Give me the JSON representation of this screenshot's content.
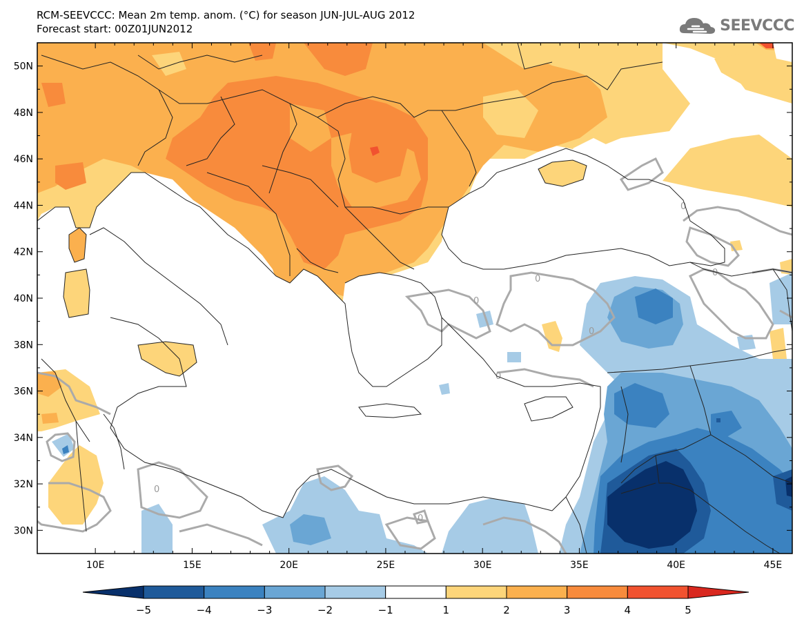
{
  "title_line1": "RCM-SEEVCCC: Mean 2m temp. anom. (°C) for season JUN-JUL-AUG 2012",
  "title_line2": "Forecast start: 00Z01JUN2012",
  "logo_text": "SEEVCCC",
  "lon_ticks": [
    {
      "label": "10E"
    },
    {
      "label": "15E"
    },
    {
      "label": "20E"
    },
    {
      "label": "25E"
    },
    {
      "label": "30E"
    },
    {
      "label": "35E"
    },
    {
      "label": "40E"
    },
    {
      "label": "45E"
    }
  ],
  "lat_ticks": [
    {
      "label": "50N"
    },
    {
      "label": "48N"
    },
    {
      "label": "46N"
    },
    {
      "label": "44N"
    },
    {
      "label": "42N"
    },
    {
      "label": "40N"
    },
    {
      "label": "38N"
    },
    {
      "label": "36N"
    },
    {
      "label": "34N"
    },
    {
      "label": "32N"
    },
    {
      "label": "30N"
    }
  ],
  "map_extent": {
    "lon": [
      7,
      46
    ],
    "lat": [
      29,
      51
    ]
  },
  "colorbar": {
    "labels": [
      "-5",
      "-4",
      "-3",
      "-2",
      "-1",
      "1",
      "2",
      "3",
      "4",
      "5"
    ],
    "bins": [
      {
        "range": "< -5",
        "color": "#08306b"
      },
      {
        "range": "-5 to -4",
        "color": "#1f5a9a"
      },
      {
        "range": "-4 to -3",
        "color": "#3b82c0"
      },
      {
        "range": "-3 to -2",
        "color": "#6aa6d4"
      },
      {
        "range": "-2 to -1",
        "color": "#a6cbe6"
      },
      {
        "range": "-1 to 1",
        "color": "#ffffff"
      },
      {
        "range": "1 to 2",
        "color": "#fdd57a"
      },
      {
        "range": "2 to 3",
        "color": "#fbb04e"
      },
      {
        "range": "3 to 4",
        "color": "#f88b3c"
      },
      {
        "range": "4 to 5",
        "color": "#f1522f"
      },
      {
        "range": "> 5",
        "color": "#d9281f"
      }
    ]
  },
  "contour_label": "0",
  "colors": {
    "contour": "#aaaaaa",
    "border": "#222222"
  }
}
